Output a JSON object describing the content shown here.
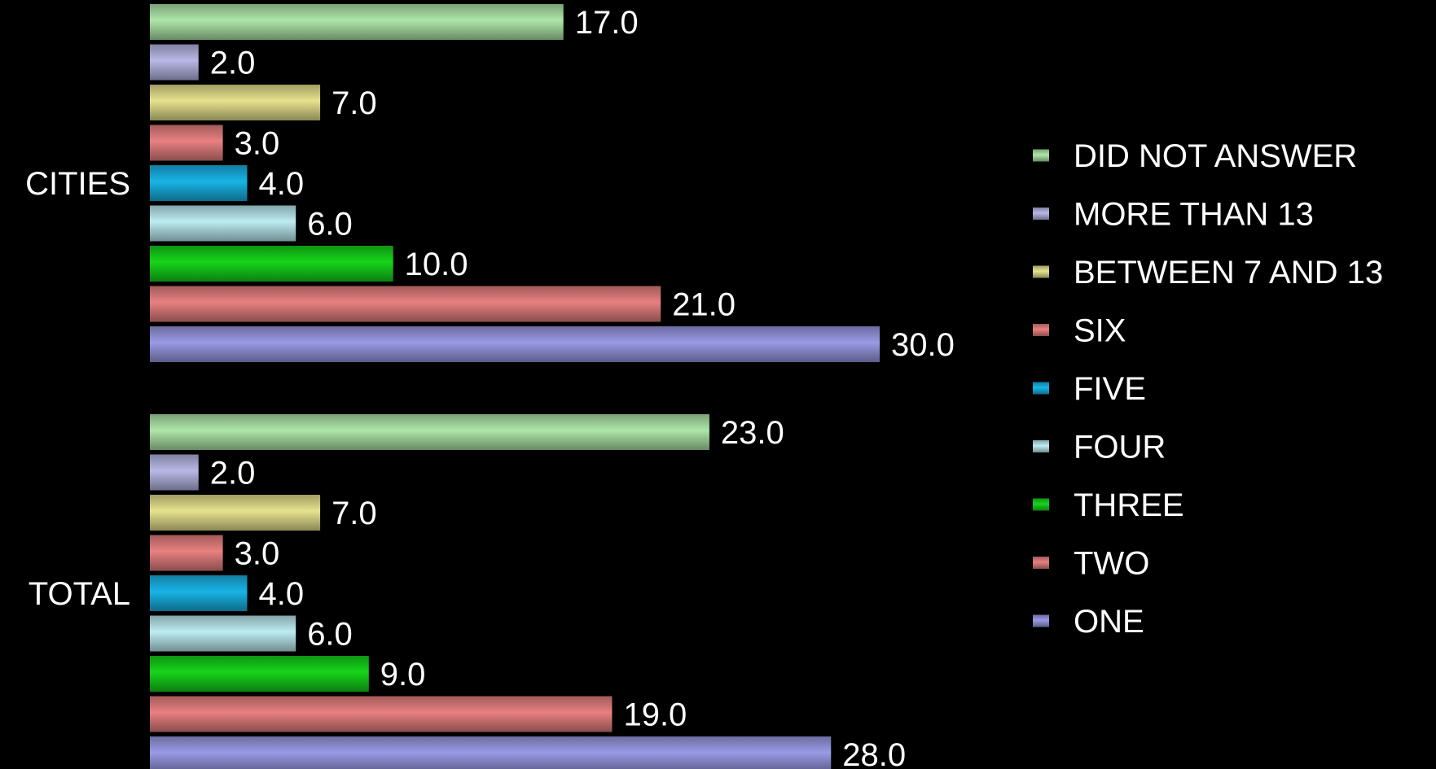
{
  "chart_data": {
    "type": "bar",
    "orientation": "horizontal",
    "categories": [
      "CITIES",
      "TOTAL"
    ],
    "xlim": [
      0,
      32
    ],
    "grid": false,
    "legend_position": "right",
    "series": [
      {
        "name": "DID NOT ANSWER",
        "color": "#aee6a8",
        "values": [
          17.0,
          23.0
        ]
      },
      {
        "name": "MORE THAN 13",
        "color": "#b8b8e6",
        "values": [
          2.0,
          2.0
        ]
      },
      {
        "name": "BETWEEN 7 AND 13",
        "color": "#e6e28e",
        "values": [
          7.0,
          7.0
        ]
      },
      {
        "name": "SIX",
        "color": "#e88080",
        "values": [
          3.0,
          3.0
        ]
      },
      {
        "name": "FIVE",
        "color": "#18b4e6",
        "values": [
          4.0,
          4.0
        ]
      },
      {
        "name": "FOUR",
        "color": "#bcecf2",
        "values": [
          6.0,
          6.0
        ]
      },
      {
        "name": "THREE",
        "color": "#16d41a",
        "values": [
          10.0,
          9.0
        ]
      },
      {
        "name": "TWO",
        "color": "#e88080",
        "values": [
          21.0,
          19.0
        ]
      },
      {
        "name": "ONE",
        "color": "#9a9ae6",
        "values": [
          30.0,
          28.0
        ]
      }
    ]
  }
}
